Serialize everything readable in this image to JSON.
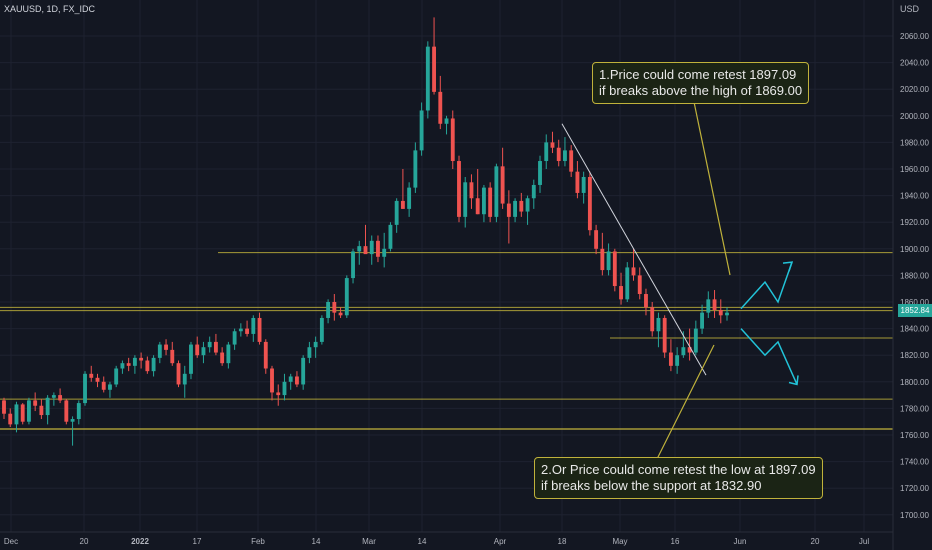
{
  "header": {
    "symbol": "XAUUSD, 1D, FX_IDC",
    "currency": "USD",
    "last_price": "1852.84"
  },
  "annotations": {
    "callout_top": [
      "1.Price could come retest 1897.09",
      "if breaks above the high of 1869.00"
    ],
    "callout_bottom": [
      "2.Or Price could come retest the low at 1897.09",
      "if breaks below the support at 1832.90"
    ]
  },
  "colors": {
    "background": "#131722",
    "up": "#26a69a",
    "down": "#ef5350",
    "level_line": "#c0b23b",
    "projection": "#22c3d8",
    "trendline": "#d1d4dc"
  },
  "chart_data": {
    "type": "candlestick",
    "y_ticks": [
      1700,
      1720,
      1740,
      1760,
      1780,
      1800,
      1820,
      1840,
      1860,
      1880,
      1900,
      1920,
      1940,
      1960,
      1980,
      2000,
      2020,
      2040,
      2060
    ],
    "y_tick_labels": [
      "1700.00",
      "1720.00",
      "1740.00",
      "1760.00",
      "1780.00",
      "1800.00",
      "1820.00",
      "1840.00",
      "1860.00",
      "1880.00",
      "1900.00",
      "1920.00",
      "1940.00",
      "1960.00",
      "1980.00",
      "2000.00",
      "2020.00",
      "2040.00",
      "2060.00"
    ],
    "x_tick_labels": [
      "Dec",
      "20",
      "2022",
      "17",
      "Feb",
      "14",
      "Mar",
      "14",
      "Apr",
      "18",
      "May",
      "16",
      "Jun",
      "20",
      "Jul"
    ],
    "horizontal_levels": [
      1897.09,
      1856,
      1853.5,
      1832.9,
      1787,
      1764.5
    ],
    "trendline": {
      "from": 1994,
      "to": 1805
    },
    "projection_up": [
      1855,
      1875,
      1860,
      1890
    ],
    "projection_down": [
      1840,
      1820,
      1830,
      1798
    ],
    "candles": [
      [
        1786,
        1788,
        1772,
        1776
      ],
      [
        1776,
        1780,
        1766,
        1768
      ],
      [
        1768,
        1785,
        1762,
        1783
      ],
      [
        1783,
        1784,
        1768,
        1770
      ],
      [
        1770,
        1788,
        1768,
        1786
      ],
      [
        1786,
        1792,
        1778,
        1782
      ],
      [
        1782,
        1787,
        1772,
        1775
      ],
      [
        1775,
        1790,
        1768,
        1788
      ],
      [
        1788,
        1792,
        1782,
        1790
      ],
      [
        1790,
        1795,
        1784,
        1786
      ],
      [
        1786,
        1787,
        1768,
        1770
      ],
      [
        1770,
        1774,
        1752,
        1772
      ],
      [
        1772,
        1786,
        1768,
        1784
      ],
      [
        1784,
        1808,
        1782,
        1806
      ],
      [
        1806,
        1812,
        1800,
        1803
      ],
      [
        1803,
        1806,
        1796,
        1800
      ],
      [
        1800,
        1804,
        1792,
        1794
      ],
      [
        1794,
        1800,
        1788,
        1798
      ],
      [
        1798,
        1812,
        1796,
        1810
      ],
      [
        1810,
        1816,
        1806,
        1814
      ],
      [
        1814,
        1818,
        1808,
        1812
      ],
      [
        1812,
        1820,
        1806,
        1818
      ],
      [
        1818,
        1822,
        1810,
        1816
      ],
      [
        1816,
        1819,
        1806,
        1808
      ],
      [
        1808,
        1820,
        1804,
        1818
      ],
      [
        1818,
        1830,
        1814,
        1828
      ],
      [
        1828,
        1832,
        1820,
        1824
      ],
      [
        1824,
        1830,
        1812,
        1814
      ],
      [
        1814,
        1816,
        1796,
        1798
      ],
      [
        1798,
        1812,
        1788,
        1806
      ],
      [
        1806,
        1830,
        1802,
        1828
      ],
      [
        1828,
        1834,
        1818,
        1820
      ],
      [
        1820,
        1830,
        1814,
        1826
      ],
      [
        1826,
        1834,
        1822,
        1830
      ],
      [
        1830,
        1836,
        1820,
        1822
      ],
      [
        1822,
        1826,
        1812,
        1814
      ],
      [
        1814,
        1830,
        1810,
        1828
      ],
      [
        1828,
        1840,
        1824,
        1838
      ],
      [
        1838,
        1844,
        1834,
        1840
      ],
      [
        1840,
        1846,
        1834,
        1836
      ],
      [
        1836,
        1850,
        1830,
        1848
      ],
      [
        1848,
        1852,
        1828,
        1830
      ],
      [
        1830,
        1832,
        1806,
        1810
      ],
      [
        1810,
        1812,
        1786,
        1792
      ],
      [
        1792,
        1798,
        1782,
        1790
      ],
      [
        1790,
        1806,
        1786,
        1800
      ],
      [
        1800,
        1806,
        1794,
        1804
      ],
      [
        1804,
        1808,
        1796,
        1798
      ],
      [
        1798,
        1820,
        1794,
        1818
      ],
      [
        1818,
        1830,
        1814,
        1826
      ],
      [
        1826,
        1834,
        1818,
        1830
      ],
      [
        1830,
        1850,
        1828,
        1848
      ],
      [
        1848,
        1862,
        1844,
        1860
      ],
      [
        1860,
        1866,
        1846,
        1852
      ],
      [
        1852,
        1856,
        1848,
        1850
      ],
      [
        1850,
        1880,
        1848,
        1878
      ],
      [
        1878,
        1900,
        1874,
        1898
      ],
      [
        1898,
        1906,
        1888,
        1902
      ],
      [
        1902,
        1918,
        1898,
        1896
      ],
      [
        1896,
        1910,
        1888,
        1906
      ],
      [
        1906,
        1910,
        1890,
        1894
      ],
      [
        1894,
        1912,
        1886,
        1900
      ],
      [
        1900,
        1920,
        1898,
        1918
      ],
      [
        1918,
        1938,
        1912,
        1936
      ],
      [
        1936,
        1960,
        1930,
        1930
      ],
      [
        1930,
        1950,
        1924,
        1946
      ],
      [
        1946,
        1980,
        1942,
        1974
      ],
      [
        1974,
        2010,
        1970,
        2004
      ],
      [
        2004,
        2056,
        1998,
        2052
      ],
      [
        2052,
        2074,
        2016,
        2018
      ],
      [
        2018,
        2030,
        1990,
        1994
      ],
      [
        1994,
        2000,
        1986,
        1998
      ],
      [
        1998,
        2004,
        1960,
        1966
      ],
      [
        1966,
        1970,
        1920,
        1924
      ],
      [
        1924,
        1954,
        1916,
        1950
      ],
      [
        1950,
        1956,
        1930,
        1938
      ],
      [
        1938,
        1960,
        1926,
        1926
      ],
      [
        1926,
        1948,
        1920,
        1946
      ],
      [
        1946,
        1950,
        1920,
        1924
      ],
      [
        1924,
        1964,
        1920,
        1962
      ],
      [
        1962,
        1976,
        1930,
        1934
      ],
      [
        1934,
        1944,
        1904,
        1924
      ],
      [
        1924,
        1938,
        1920,
        1936
      ],
      [
        1936,
        1942,
        1924,
        1928
      ],
      [
        1928,
        1940,
        1918,
        1938
      ],
      [
        1938,
        1952,
        1930,
        1948
      ],
      [
        1948,
        1970,
        1942,
        1966
      ],
      [
        1966,
        1986,
        1960,
        1980
      ],
      [
        1980,
        1988,
        1972,
        1976
      ],
      [
        1976,
        1982,
        1962,
        1966
      ],
      [
        1966,
        1984,
        1962,
        1974
      ],
      [
        1974,
        1978,
        1954,
        1958
      ],
      [
        1958,
        1966,
        1938,
        1942
      ],
      [
        1942,
        1958,
        1934,
        1954
      ],
      [
        1954,
        1958,
        1910,
        1914
      ],
      [
        1914,
        1918,
        1896,
        1900
      ],
      [
        1900,
        1912,
        1880,
        1884
      ],
      [
        1884,
        1904,
        1880,
        1898
      ],
      [
        1898,
        1900,
        1868,
        1872
      ],
      [
        1872,
        1882,
        1858,
        1862
      ],
      [
        1862,
        1890,
        1860,
        1886
      ],
      [
        1886,
        1900,
        1876,
        1880
      ],
      [
        1880,
        1886,
        1862,
        1866
      ],
      [
        1866,
        1870,
        1850,
        1856
      ],
      [
        1856,
        1860,
        1834,
        1838
      ],
      [
        1838,
        1852,
        1826,
        1848
      ],
      [
        1848,
        1850,
        1818,
        1822
      ],
      [
        1822,
        1832,
        1808,
        1812
      ],
      [
        1812,
        1826,
        1806,
        1820
      ],
      [
        1820,
        1838,
        1818,
        1826
      ],
      [
        1826,
        1840,
        1816,
        1822
      ],
      [
        1822,
        1846,
        1820,
        1840
      ],
      [
        1840,
        1858,
        1836,
        1852
      ],
      [
        1852,
        1868,
        1848,
        1862
      ],
      [
        1862,
        1869,
        1848,
        1854
      ],
      [
        1854,
        1862,
        1844,
        1850
      ],
      [
        1850,
        1856,
        1846,
        1852
      ]
    ]
  }
}
